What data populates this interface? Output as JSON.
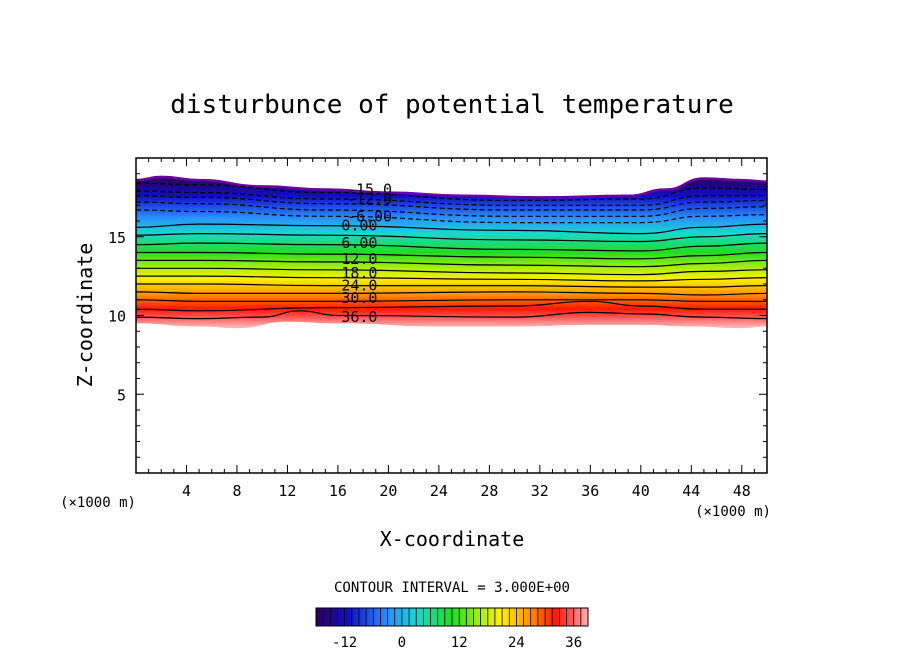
{
  "chart_data": {
    "type": "contour",
    "title": "disturbunce of potential temperature",
    "xlabel": "X-coordinate",
    "ylabel": "Z-coordinate",
    "x_unit": "(×1000 m)",
    "z_unit": "(×1000 m)",
    "xlim": [
      0,
      50
    ],
    "ylim": [
      0,
      20
    ],
    "x_ticks": [
      4,
      8,
      12,
      16,
      20,
      24,
      28,
      32,
      36,
      40,
      44,
      48
    ],
    "y_ticks": [
      5,
      10,
      15
    ],
    "contour_interval_text": "CONTOUR INTERVAL = 3.000E+00",
    "levels": [
      -15,
      -12,
      -9,
      -6,
      -3,
      0,
      3,
      6,
      9,
      12,
      15,
      18,
      21,
      24,
      27,
      30,
      33,
      36
    ],
    "contour_labels": [
      {
        "text": "-15.0",
        "x": 18.5,
        "z": 18.0
      },
      {
        "text": "-12.0",
        "x": 18.5,
        "z": 17.4
      },
      {
        "text": "-6.00",
        "x": 18.5,
        "z": 16.3
      },
      {
        "text": "0.00",
        "x": 17.7,
        "z": 15.7
      },
      {
        "text": "6.00",
        "x": 17.7,
        "z": 14.6
      },
      {
        "text": "12.0",
        "x": 17.7,
        "z": 13.6
      },
      {
        "text": "18.0",
        "x": 17.7,
        "z": 12.7
      },
      {
        "text": "24.0",
        "x": 17.7,
        "z": 11.9
      },
      {
        "text": "30.0",
        "x": 17.7,
        "z": 11.1
      },
      {
        "text": "36.0",
        "x": 17.7,
        "z": 9.9
      }
    ],
    "top_boundary": [
      [
        0,
        18.6
      ],
      [
        2,
        18.8
      ],
      [
        5,
        18.6
      ],
      [
        10,
        18.2
      ],
      [
        15,
        18.0
      ],
      [
        20,
        17.8
      ],
      [
        26,
        17.6
      ],
      [
        32,
        17.5
      ],
      [
        39,
        17.6
      ],
      [
        42,
        18.0
      ],
      [
        45,
        18.7
      ],
      [
        48,
        18.6
      ],
      [
        50,
        18.5
      ]
    ],
    "bottom_boundary": [
      [
        0,
        9.5
      ],
      [
        5,
        9.3
      ],
      [
        8,
        9.2
      ],
      [
        12,
        9.6
      ],
      [
        16,
        9.5
      ],
      [
        24,
        9.3
      ],
      [
        30,
        9.3
      ],
      [
        36,
        9.4
      ],
      [
        40,
        9.4
      ],
      [
        44,
        9.3
      ],
      [
        48,
        9.2
      ],
      [
        50,
        9.3
      ]
    ],
    "dashed_lines": [
      [
        [
          0,
          18.4
        ],
        [
          5,
          18.3
        ],
        [
          15,
          17.8
        ],
        [
          30,
          17.3
        ],
        [
          40,
          17.4
        ],
        [
          45,
          18.1
        ],
        [
          50,
          18.0
        ]
      ],
      [
        [
          0,
          17.9
        ],
        [
          5,
          17.8
        ],
        [
          15,
          17.4
        ],
        [
          30,
          17.0
        ],
        [
          40,
          17.0
        ],
        [
          45,
          17.6
        ],
        [
          50,
          17.6
        ]
      ],
      [
        [
          0,
          17.6
        ],
        [
          5,
          17.5
        ],
        [
          15,
          17.1
        ],
        [
          30,
          16.7
        ],
        [
          40,
          16.7
        ],
        [
          45,
          17.2
        ],
        [
          50,
          17.3
        ]
      ],
      [
        [
          0,
          17.2
        ],
        [
          5,
          17.1
        ],
        [
          15,
          16.7
        ],
        [
          30,
          16.3
        ],
        [
          40,
          16.3
        ],
        [
          45,
          16.8
        ],
        [
          50,
          16.9
        ]
      ],
      [
        [
          0,
          16.7
        ],
        [
          5,
          16.6
        ],
        [
          15,
          16.3
        ],
        [
          30,
          15.9
        ],
        [
          40,
          15.9
        ],
        [
          45,
          16.3
        ],
        [
          50,
          16.4
        ]
      ]
    ],
    "solid_lines": [
      [
        [
          0,
          15.6
        ],
        [
          5,
          15.8
        ],
        [
          15,
          15.7
        ],
        [
          30,
          15.4
        ],
        [
          40,
          15.2
        ],
        [
          45,
          15.6
        ],
        [
          50,
          15.8
        ]
      ],
      [
        [
          0,
          15.1
        ],
        [
          5,
          15.2
        ],
        [
          15,
          15.1
        ],
        [
          30,
          14.8
        ],
        [
          40,
          14.7
        ],
        [
          45,
          15.0
        ],
        [
          50,
          15.2
        ]
      ],
      [
        [
          0,
          14.5
        ],
        [
          5,
          14.6
        ],
        [
          15,
          14.5
        ],
        [
          30,
          14.2
        ],
        [
          40,
          14.1
        ],
        [
          45,
          14.4
        ],
        [
          50,
          14.6
        ]
      ],
      [
        [
          0,
          14.0
        ],
        [
          5,
          14.0
        ],
        [
          15,
          13.9
        ],
        [
          30,
          13.7
        ],
        [
          40,
          13.6
        ],
        [
          45,
          13.8
        ],
        [
          50,
          14.0
        ]
      ],
      [
        [
          0,
          13.5
        ],
        [
          5,
          13.5
        ],
        [
          15,
          13.4
        ],
        [
          30,
          13.2
        ],
        [
          40,
          13.1
        ],
        [
          45,
          13.3
        ],
        [
          50,
          13.5
        ]
      ],
      [
        [
          0,
          13.0
        ],
        [
          5,
          13.0
        ],
        [
          15,
          12.9
        ],
        [
          30,
          12.7
        ],
        [
          40,
          12.6
        ],
        [
          45,
          12.8
        ],
        [
          50,
          12.9
        ]
      ],
      [
        [
          0,
          12.5
        ],
        [
          5,
          12.5
        ],
        [
          15,
          12.4
        ],
        [
          30,
          12.3
        ],
        [
          40,
          12.2
        ],
        [
          45,
          12.3
        ],
        [
          50,
          12.4
        ]
      ],
      [
        [
          0,
          12.0
        ],
        [
          5,
          12.0
        ],
        [
          15,
          11.9
        ],
        [
          30,
          11.9
        ],
        [
          40,
          11.8
        ],
        [
          45,
          11.8
        ],
        [
          50,
          11.9
        ]
      ],
      [
        [
          0,
          11.5
        ],
        [
          5,
          11.4
        ],
        [
          15,
          11.4
        ],
        [
          30,
          11.5
        ],
        [
          40,
          11.4
        ],
        [
          45,
          11.3
        ],
        [
          50,
          11.4
        ]
      ],
      [
        [
          0,
          11.0
        ],
        [
          5,
          10.9
        ],
        [
          15,
          10.9
        ],
        [
          30,
          11.0
        ],
        [
          40,
          11.0
        ],
        [
          45,
          10.9
        ],
        [
          50,
          10.9
        ]
      ],
      [
        [
          0,
          10.4
        ],
        [
          5,
          10.3
        ],
        [
          15,
          10.5
        ],
        [
          30,
          10.6
        ],
        [
          36,
          10.9
        ],
        [
          40,
          10.6
        ],
        [
          45,
          10.4
        ],
        [
          50,
          10.4
        ]
      ],
      [
        [
          0,
          9.9
        ],
        [
          5,
          9.8
        ],
        [
          10,
          9.9
        ],
        [
          13,
          10.3
        ],
        [
          16,
          10.0
        ],
        [
          30,
          9.9
        ],
        [
          36,
          10.2
        ],
        [
          40,
          10.1
        ],
        [
          45,
          9.9
        ],
        [
          50,
          9.8
        ]
      ]
    ],
    "colorbar": {
      "min": -18,
      "max": 39,
      "tick_values": [
        -12,
        0,
        12,
        24,
        36
      ],
      "tick_labels": [
        "-12",
        "0",
        "12",
        "24",
        "36"
      ]
    }
  }
}
